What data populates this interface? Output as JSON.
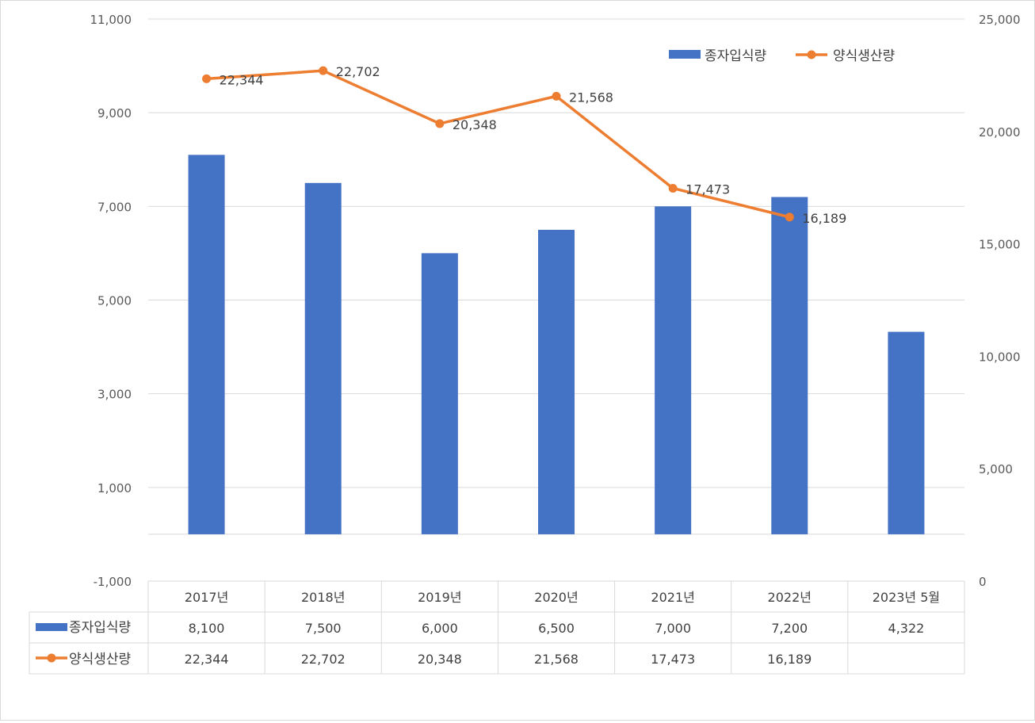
{
  "chart_data": {
    "type": "bar",
    "title": "",
    "categories": [
      "2017년",
      "2018년",
      "2019년",
      "2020년",
      "2021년",
      "2022년",
      "2023년 5월"
    ],
    "series": [
      {
        "name": "종자입식량",
        "type": "bar",
        "axis": "left",
        "color": "#4472C4",
        "values": [
          8100,
          7500,
          6000,
          6500,
          7000,
          7200,
          4322
        ],
        "value_labels": [
          "8,100",
          "7,500",
          "6,000",
          "6,500",
          "7,000",
          "7,200",
          "4,322"
        ]
      },
      {
        "name": "양식생산량",
        "type": "line",
        "axis": "right",
        "color": "#ED7D31",
        "values": [
          22344,
          22702,
          20348,
          21568,
          17473,
          16189,
          null
        ],
        "value_labels": [
          "22,344",
          "22,702",
          "20,348",
          "21,568",
          "17,473",
          "16,189",
          ""
        ]
      }
    ],
    "y_left": {
      "min": -1000,
      "max": 11000,
      "ticks": [
        -1000,
        1000,
        3000,
        5000,
        7000,
        9000,
        11000
      ],
      "tick_labels": [
        "-1,000",
        "1,000",
        "3,000",
        "5,000",
        "7,000",
        "9,000",
        "11,000"
      ]
    },
    "y_right": {
      "min": 0,
      "max": 25000,
      "ticks": [
        0,
        5000,
        10000,
        15000,
        20000,
        25000
      ],
      "tick_labels": [
        "0",
        "5,000",
        "10,000",
        "15,000",
        "20,000",
        "25,000"
      ]
    },
    "grid": true,
    "legend_position": "top-right",
    "data_table": true
  }
}
